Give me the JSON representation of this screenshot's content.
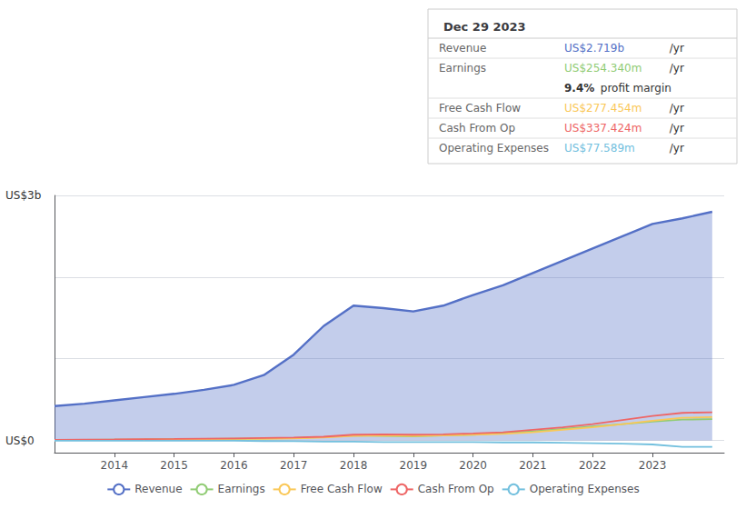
{
  "chart_data": {
    "type": "line",
    "title": "Dec 29 2023",
    "annotations": [
      "US$3b",
      "US$0"
    ],
    "info_rows": [
      {
        "label": "Revenue",
        "value": "US$2.719b",
        "suffix": " /yr"
      },
      {
        "label": "Earnings",
        "value": "US$254.340m",
        "suffix": " /yr"
      },
      {
        "value": "9.4%",
        "suffix": " profit margin"
      },
      {
        "label": "Free Cash Flow",
        "value": "US$277.454m",
        "suffix": " /yr"
      },
      {
        "label": "Cash From Op",
        "value": "US$337.424m",
        "suffix": " /yr"
      },
      {
        "label": "Operating Expenses",
        "value": "US$77.589m",
        "suffix": " /yr"
      }
    ],
    "x": [
      2013,
      2013.5,
      2014,
      2014.5,
      2015,
      2015.5,
      2016,
      2016.5,
      2017,
      2017.5,
      2018,
      2018.5,
      2019,
      2019.5,
      2020,
      2020.5,
      2021,
      2021.5,
      2022,
      2022.5,
      2023,
      2023.5,
      2024
    ],
    "series": [
      {
        "name": "Revenue",
        "type": "area",
        "values": [
          420,
          450,
          490,
          530,
          570,
          620,
          680,
          800,
          1050,
          1400,
          1650,
          1620,
          1580,
          1650,
          1780,
          1900,
          2050,
          2200,
          2350,
          2500,
          2650,
          2719,
          2800
        ]
      },
      {
        "name": "Earnings",
        "type": "line",
        "values": [
          5,
          8,
          10,
          12,
          15,
          18,
          20,
          25,
          30,
          40,
          60,
          55,
          50,
          60,
          70,
          90,
          110,
          140,
          170,
          200,
          230,
          254,
          260
        ]
      },
      {
        "name": "Free Cash Flow",
        "type": "line",
        "values": [
          5,
          6,
          8,
          10,
          12,
          15,
          18,
          20,
          25,
          35,
          55,
          60,
          55,
          60,
          70,
          80,
          100,
          130,
          160,
          200,
          240,
          277,
          285
        ]
      },
      {
        "name": "Cash From Op",
        "type": "line",
        "values": [
          8,
          10,
          12,
          15,
          18,
          22,
          25,
          30,
          35,
          45,
          70,
          75,
          70,
          75,
          85,
          100,
          130,
          160,
          200,
          250,
          300,
          337,
          345
        ]
      },
      {
        "name": "Operating Expenses",
        "type": "line",
        "values": [
          -5,
          -4,
          -3,
          -4,
          -5,
          -5,
          -5,
          -8,
          -10,
          -15,
          -15,
          -20,
          -20,
          -20,
          -20,
          -25,
          -25,
          -30,
          -35,
          -40,
          -50,
          -78,
          -80
        ]
      }
    ],
    "xlim": [
      2013,
      2024.2
    ],
    "xticks": [
      2014,
      2015,
      2016,
      2017,
      2018,
      2019,
      2020,
      2021,
      2022,
      2023
    ],
    "ylim": [
      -150,
      3000
    ],
    "yticks": [
      0,
      1000,
      2000,
      3000
    ],
    "grid": true,
    "tick_labels": "x",
    "legend": "bottom"
  }
}
